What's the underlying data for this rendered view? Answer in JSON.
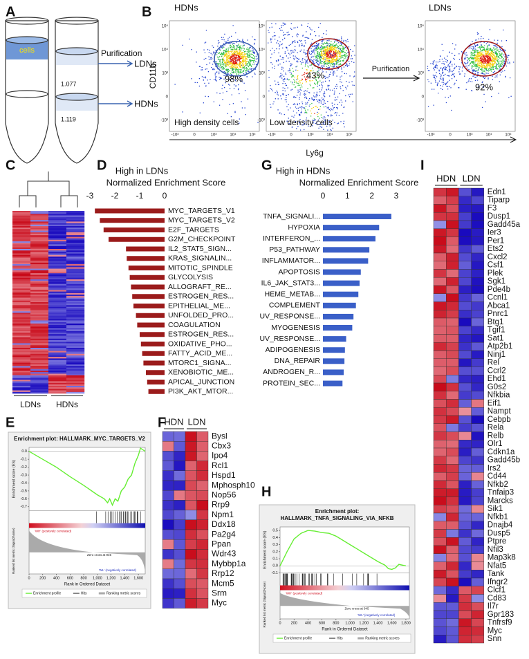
{
  "panel_labels": [
    "A",
    "B",
    "C",
    "D",
    "E",
    "F",
    "G",
    "H",
    "I"
  ],
  "panel_a": {
    "cells": "cells",
    "purification": "Purification",
    "ldns": "LDNs",
    "hdns": "HDNs",
    "density_1": "1.077",
    "density_2": "1.119"
  },
  "panel_b": {
    "plot_titles": [
      "HDNs",
      "LDNs"
    ],
    "y_label": "CD11b",
    "x_label": "Ly6g",
    "captions": [
      "High density cells",
      "Low density cells"
    ],
    "arrow_label": "Purification",
    "percentages": [
      "98%",
      "43%",
      "92%"
    ],
    "axis_ticks": [
      "10⁵",
      "10⁴",
      "10³",
      "0",
      "-10³"
    ]
  },
  "panel_c": {
    "groups": [
      "LDNs",
      "HDNs"
    ]
  },
  "panel_f": {
    "columns": [
      "HDN",
      "LDN"
    ],
    "genes": [
      "Bysl",
      "Cbx3",
      "Ipo4",
      "Rcl1",
      "Hspd1",
      "Mphosph10",
      "Nop56",
      "Rrp9",
      "Npm1",
      "Ddx18",
      "Pa2g4",
      "Ppan",
      "Wdr43",
      "Mybbp1a",
      "Rrp12",
      "Mcm5",
      "Srm",
      "Myc"
    ]
  },
  "panel_i": {
    "columns": [
      "HDN",
      "LDN"
    ],
    "genes": [
      "Edn1",
      "Tiparp",
      "F3",
      "Dusp1",
      "Gadd45a",
      "Ier3",
      "Per1",
      "Ets2",
      "Cxcl2",
      "Csf1",
      "Plek",
      "Sgk1",
      "Pde4b",
      "Ccnl1",
      "Abca1",
      "Pnrc1",
      "Btg1",
      "Tgif1",
      "Sat1",
      "Atp2b1",
      "Ninj1",
      "Rel",
      "Ccrl2",
      "Ehd1",
      "G0s2",
      "Nfkbia",
      "Eif1",
      "Nampt",
      "Cebpb",
      "Rela",
      "Relb",
      "Olr1",
      "Cdkn1a",
      "Gadd45b",
      "Irs2",
      "Cd44",
      "Nfkb2",
      "Tnfaip3",
      "Marcks",
      "Sik1",
      "Nfkb1",
      "Dnajb4",
      "Dusp5",
      "Ptpre",
      "Nfil3",
      "Map3k8",
      "Nfat5",
      "Tank",
      "Ifngr2",
      "Clcf1",
      "Cd83",
      "Il7r",
      "Gpr183",
      "Tnfrsf9",
      "Myc",
      "Snn"
    ]
  },
  "chart_data": [
    {
      "type": "bar",
      "orientation": "horizontal",
      "title": "High in LDNs",
      "x_label": "Normalized Enrichment Score",
      "color": "#9b1b1b",
      "categories": [
        "MYC_TARGETS_V1",
        "MYC_TARGETS_V2",
        "E2F_TARGETS",
        "G2M_CHECKPOINT",
        "IL2_STAT5_SIGN...",
        "KRAS_SIGNALIN...",
        "MITOTIC_SPINDLE",
        "GLYCOLYSIS",
        "ALLOGRAFT_RE...",
        "ESTROGEN_RES...",
        "EPITHELIAL_ME...",
        "UNFOLDED_PRO...",
        "COAGULATION",
        "ESTROGEN_RES...",
        "OXIDATIVE_PHO...",
        "FATTY_ACID_ME...",
        "MTORC1_SIGNA...",
        "XENOBIOTIC_ME...",
        "APICAL_JUNCTION",
        "PI3K_AKT_MTOR..."
      ],
      "values": [
        -2.8,
        -2.6,
        -2.45,
        -2.25,
        -1.55,
        -1.52,
        -1.45,
        -1.4,
        -1.35,
        -1.3,
        -1.25,
        -1.15,
        -1.1,
        -1.0,
        -0.95,
        -0.9,
        -0.85,
        -0.75,
        -0.7,
        -0.65
      ],
      "xlim": [
        -3,
        0
      ],
      "xticks": [
        -3,
        -2,
        -1,
        0
      ]
    },
    {
      "type": "bar",
      "orientation": "horizontal",
      "title": "High in HDNs",
      "x_label": "Normalized Enrichment Score",
      "color": "#3a5fc8",
      "categories": [
        "TNFA_SIGNALI...",
        "HYPOXIA",
        "INTERFERON_...",
        "P53_PATHWAY",
        "INFLAMMATOR...",
        "APOPTOSIS",
        "IL6_JAK_STAT3...",
        "HEME_METAB...",
        "COMPLEMENT",
        "UV_RESPONSE...",
        "MYOGENESIS",
        "UV_RESPONSE...",
        "ADIPOGENESIS",
        "DNA_REPAIR",
        "ANDROGEN_R...",
        "PROTEIN_SEC..."
      ],
      "values": [
        2.8,
        2.3,
        2.15,
        1.9,
        1.85,
        1.55,
        1.5,
        1.45,
        1.35,
        1.25,
        1.2,
        0.95,
        0.9,
        0.88,
        0.85,
        0.8
      ],
      "xlim": [
        0,
        3
      ],
      "xticks": [
        0,
        1,
        2,
        3
      ]
    },
    {
      "type": "line",
      "title": "Enrichment plot: HALLMARK_MYC_TARGETS_V2",
      "y_label": "Enrichment score (ES)",
      "metric_label": "Ranked list metric (Signal2Noise)",
      "x_label": "Rank in Ordered Dataset",
      "annotations": [
        "'WH' (positively correlated)",
        "Zero cross at 945",
        "'WL' (negatively correlated)"
      ],
      "legend_extra": [
        "Hits",
        "Ranking metric scores"
      ],
      "x": [
        0,
        200,
        400,
        600,
        800,
        1000,
        1100,
        1150,
        1180,
        1220,
        1260,
        1300,
        1350,
        1400,
        1450,
        1500,
        1550,
        1600,
        1630,
        1700
      ],
      "series": [
        {
          "name": "Enrichment profile",
          "color": "#66ee33",
          "values": [
            0,
            -0.1,
            -0.2,
            -0.32,
            -0.43,
            -0.55,
            -0.6,
            -0.65,
            -0.6,
            -0.68,
            -0.6,
            -0.63,
            -0.5,
            -0.45,
            -0.35,
            -0.3,
            -0.15,
            -0.05,
            0.04,
            0
          ]
        }
      ],
      "xlim": [
        0,
        1700
      ],
      "xticks": [
        0,
        200,
        400,
        600,
        800,
        {
          "value": 1000,
          "label": "1,000"
        },
        {
          "value": 1200,
          "label": "1,200"
        },
        {
          "value": 1400,
          "label": "1,400"
        },
        {
          "value": 1600,
          "label": "1,600"
        }
      ],
      "ylim": [
        -0.75,
        0.05
      ],
      "yticks": [
        {
          "value": 0,
          "label": "0.0"
        },
        -0.1,
        -0.2,
        -0.3,
        -0.4,
        -0.5,
        -0.6,
        -0.7
      ]
    },
    {
      "type": "line",
      "title": "Enrichment plot:",
      "subtitle": "HALLMARK_TNFA_SIGNALING_VIA_NFKB",
      "y_label": "Enrichment score (ES)",
      "metric_label": "Ranked list metric (Signal2Noise)",
      "x_label": "Rank in Ordered Dataset",
      "annotations": [
        "'WH' (positively correlated)",
        "Zero cross at 945",
        "'WL' (negatively correlated)"
      ],
      "legend_extra": [
        "Hits",
        "Ranking metric scores"
      ],
      "x": [
        0,
        100,
        200,
        300,
        400,
        500,
        600,
        700,
        800,
        900,
        1000,
        1100,
        1200,
        1300,
        1400,
        1500,
        1550,
        1600,
        1650,
        1700,
        1800
      ],
      "series": [
        {
          "name": "Enrichment profile",
          "color": "#66ee33",
          "values": [
            0,
            0.2,
            0.38,
            0.46,
            0.5,
            0.49,
            0.47,
            0.46,
            0.42,
            0.36,
            0.3,
            0.24,
            0.18,
            0.12,
            0.06,
            0.01,
            -0.04,
            -0.05,
            -0.03,
            0.02,
            0
          ]
        }
      ],
      "xlim": [
        0,
        1850
      ],
      "xticks": [
        0,
        200,
        400,
        600,
        800,
        {
          "value": 1000,
          "label": "1,000"
        },
        {
          "value": 1200,
          "label": "1,200"
        },
        {
          "value": 1400,
          "label": "1,400"
        },
        {
          "value": 1600,
          "label": "1,600"
        },
        {
          "value": 1800,
          "label": "1,800"
        }
      ],
      "ylim": [
        -0.1,
        0.55
      ],
      "yticks": [
        0.5,
        0.4,
        0.3,
        0.2,
        0.1,
        {
          "value": 0,
          "label": "0.0"
        },
        -0.1
      ]
    }
  ]
}
